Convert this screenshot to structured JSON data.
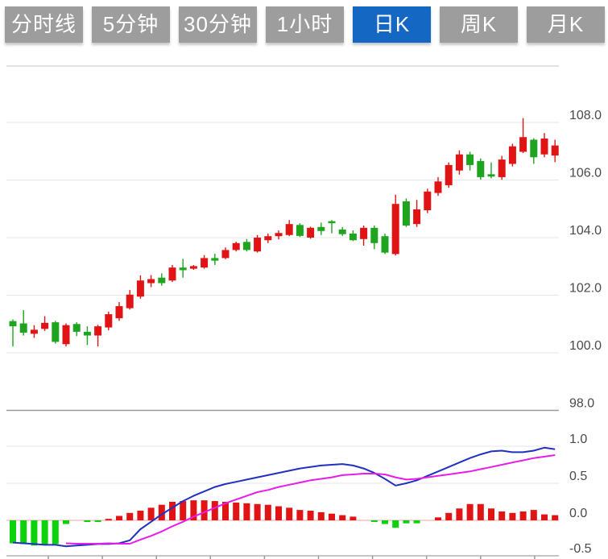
{
  "toolbar": {
    "buttons": [
      {
        "label": "分时线",
        "active": false
      },
      {
        "label": "5分钟",
        "active": false
      },
      {
        "label": "30分钟",
        "active": false
      },
      {
        "label": "1小时",
        "active": false
      },
      {
        "label": "日K",
        "active": true
      },
      {
        "label": "周K",
        "active": false
      },
      {
        "label": "月K",
        "active": false
      }
    ]
  },
  "chart_data": {
    "type": "candlestick",
    "title": "",
    "legend_position": "none",
    "grid": true,
    "price_axis": {
      "labels": [
        "108.0",
        "106.0",
        "104.0",
        "102.0",
        "100.0",
        "98.0"
      ],
      "values": [
        108,
        106,
        104,
        102,
        100,
        98
      ],
      "side": "right"
    },
    "macd_axis": {
      "labels": [
        "1.0",
        "0.5",
        "0.0",
        "-0.5"
      ],
      "values": [
        1.0,
        0.5,
        0.0,
        -0.5
      ],
      "side": "right"
    },
    "candles_ohlc": [
      [
        101.1,
        101.16,
        100.22,
        100.92
      ],
      [
        101.02,
        101.48,
        100.6,
        100.7
      ],
      [
        100.66,
        100.96,
        100.52,
        100.8
      ],
      [
        100.83,
        101.27,
        100.76,
        101.04
      ],
      [
        101.06,
        101.11,
        100.32,
        100.38
      ],
      [
        100.3,
        101.02,
        100.22,
        100.96
      ],
      [
        101.0,
        101.06,
        100.58,
        100.73
      ],
      [
        100.73,
        100.92,
        100.27,
        100.6
      ],
      [
        100.6,
        100.97,
        100.22,
        100.92
      ],
      [
        100.88,
        101.43,
        100.78,
        101.34
      ],
      [
        101.2,
        101.76,
        101.11,
        101.62
      ],
      [
        101.55,
        102.18,
        101.5,
        102.02
      ],
      [
        101.95,
        102.69,
        101.88,
        102.51
      ],
      [
        102.42,
        102.7,
        102.28,
        102.56
      ],
      [
        102.61,
        102.76,
        102.33,
        102.42
      ],
      [
        102.51,
        103.05,
        102.46,
        102.96
      ],
      [
        102.96,
        103.26,
        102.61,
        102.87
      ],
      [
        102.92,
        103.05,
        102.88,
        103.01
      ],
      [
        102.96,
        103.39,
        102.92,
        103.29
      ],
      [
        103.29,
        103.44,
        103.05,
        103.2
      ],
      [
        103.29,
        103.66,
        103.25,
        103.57
      ],
      [
        103.57,
        103.86,
        103.52,
        103.81
      ],
      [
        103.85,
        103.95,
        103.52,
        103.57
      ],
      [
        103.52,
        104.09,
        103.48,
        104.0
      ],
      [
        103.91,
        104.14,
        103.81,
        104.05
      ],
      [
        104.05,
        104.25,
        103.94,
        104.16
      ],
      [
        104.09,
        104.61,
        104.05,
        104.47
      ],
      [
        104.44,
        104.5,
        104.02,
        104.06
      ],
      [
        104.0,
        104.38,
        103.96,
        104.34
      ],
      [
        104.37,
        104.52,
        104.09,
        104.23
      ],
      [
        104.57,
        104.61,
        104.15,
        104.5
      ],
      [
        104.28,
        104.37,
        104.06,
        104.12
      ],
      [
        104.14,
        104.25,
        103.88,
        103.91
      ],
      [
        103.95,
        104.42,
        103.72,
        104.34
      ],
      [
        104.34,
        104.42,
        103.6,
        103.81
      ],
      [
        104.05,
        104.14,
        103.43,
        103.48
      ],
      [
        103.43,
        105.49,
        103.38,
        105.17
      ],
      [
        105.26,
        105.36,
        104.37,
        104.42
      ],
      [
        104.47,
        105.31,
        104.37,
        104.98
      ],
      [
        104.95,
        105.7,
        104.85,
        105.6
      ],
      [
        105.55,
        106.1,
        105.45,
        105.95
      ],
      [
        105.82,
        106.61,
        105.73,
        106.52
      ],
      [
        106.33,
        107.03,
        106.19,
        106.89
      ],
      [
        106.89,
        106.98,
        106.33,
        106.52
      ],
      [
        106.66,
        106.75,
        106.01,
        106.1
      ],
      [
        106.2,
        106.61,
        106.06,
        106.12
      ],
      [
        106.1,
        106.84,
        106.01,
        106.71
      ],
      [
        106.56,
        107.26,
        106.47,
        107.17
      ],
      [
        106.98,
        108.15,
        106.94,
        107.49
      ],
      [
        107.4,
        107.45,
        106.56,
        106.79
      ],
      [
        106.89,
        107.63,
        106.79,
        107.44
      ],
      [
        106.85,
        107.4,
        106.62,
        107.2
      ]
    ],
    "macd": {
      "histogram": [
        -0.31,
        -0.32,
        -0.34,
        -0.33,
        -0.32,
        -0.05,
        0,
        -0.02,
        -0.02,
        0.02,
        0.06,
        0.1,
        0.13,
        0.17,
        0.21,
        0.25,
        0.26,
        0.27,
        0.27,
        0.26,
        0.25,
        0.24,
        0.23,
        0.22,
        0.21,
        0.19,
        0.17,
        0.14,
        0.13,
        0.11,
        0.09,
        0.07,
        0.05,
        0,
        -0.02,
        -0.05,
        -0.1,
        -0.04,
        -0.04,
        0,
        0.04,
        0.1,
        0.16,
        0.22,
        0.22,
        0.16,
        0.12,
        0.1,
        0.12,
        0.14,
        0.08,
        0.07
      ],
      "dif": [
        -0.3,
        -0.31,
        -0.32,
        -0.33,
        -0.33,
        -0.35,
        -0.34,
        -0.33,
        -0.32,
        -0.32,
        -0.31,
        -0.27,
        -0.12,
        -0.02,
        0.08,
        0.17,
        0.26,
        0.33,
        0.39,
        0.45,
        0.49,
        0.52,
        0.55,
        0.58,
        0.61,
        0.64,
        0.67,
        0.7,
        0.72,
        0.74,
        0.75,
        0.76,
        0.74,
        0.7,
        0.64,
        0.56,
        0.47,
        0.5,
        0.54,
        0.6,
        0.66,
        0.72,
        0.78,
        0.84,
        0.89,
        0.93,
        0.94,
        0.92,
        0.92,
        0.94,
        0.98,
        0.96
      ],
      "dea": [
        null,
        null,
        null,
        null,
        null,
        -0.31,
        -0.315,
        -0.315,
        -0.315,
        -0.31,
        -0.315,
        -0.315,
        -0.26,
        -0.21,
        -0.15,
        -0.08,
        -0.02,
        0.05,
        0.11,
        0.17,
        0.23,
        0.28,
        0.33,
        0.38,
        0.41,
        0.45,
        0.48,
        0.51,
        0.54,
        0.56,
        0.58,
        0.61,
        0.62,
        0.63,
        0.63,
        0.62,
        0.58,
        0.55,
        0.56,
        0.58,
        0.6,
        0.62,
        0.64,
        0.66,
        0.69,
        0.72,
        0.75,
        0.78,
        0.81,
        0.84,
        0.86,
        0.88
      ]
    },
    "colors": {
      "up": "#e01414",
      "down": "#1fa41f",
      "hist_up": "#e01414",
      "hist_down": "#0bd20b",
      "dif_line": "#2030c0",
      "dea_line": "#e81ce8",
      "zero_line": "#f0a0a0",
      "grid": "#e6e6e6",
      "panel_divider": "#9a9a9a",
      "bottom_axis": "#b4b4b4",
      "tick": "#999999",
      "label": "#4a4a4a",
      "button_bg": "#9d9d9d",
      "button_active_bg": "#1467c2",
      "button_text": "#ffffff"
    }
  }
}
